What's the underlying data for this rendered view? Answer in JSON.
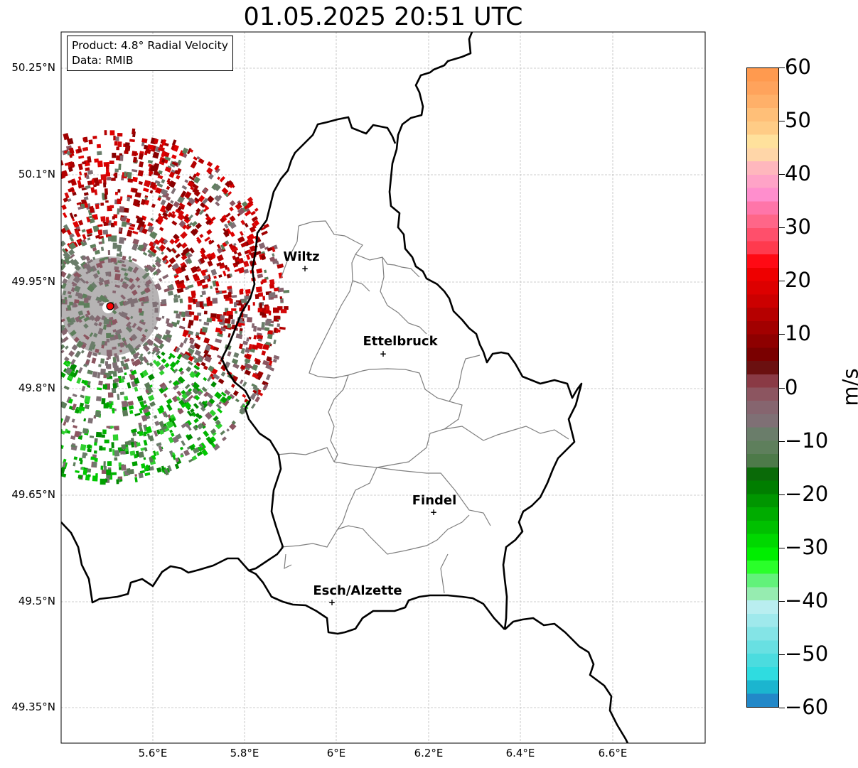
{
  "title": "01.05.2025 20:51 UTC",
  "info": {
    "product": "Product: 4.8° Radial Velocity",
    "data": "Data: RMIB"
  },
  "lat_labels": [
    "50.25°N",
    "50.1°N",
    "49.95°N",
    "49.8°N",
    "49.65°N",
    "49.5°N",
    "49.35°N"
  ],
  "lon_labels": [
    "5.6°E",
    "5.8°E",
    "6°E",
    "6.2°E",
    "6.4°E",
    "6.6°E"
  ],
  "cities": [
    {
      "name": "Wiltz"
    },
    {
      "name": "Ettelbruck"
    },
    {
      "name": "Findel"
    },
    {
      "name": "Esch/Alzette"
    }
  ],
  "colorbar": {
    "unit": "m/s",
    "ticks": [
      "60",
      "50",
      "40",
      "30",
      "20",
      "10",
      "0",
      "−10",
      "−20",
      "−30",
      "−40",
      "−50",
      "−60"
    ],
    "min": -60,
    "max": 60,
    "colors": [
      "#ff9a4f",
      "#ffa35c",
      "#ffb069",
      "#ffbf78",
      "#ffcc86",
      "#ffe19c",
      "#ffd6a8",
      "#ffb7bd",
      "#ffa3c7",
      "#ff8ecd",
      "#ff75a9",
      "#ff6688",
      "#ff4f6b",
      "#ff3a4e",
      "#ff0a14",
      "#ee0000",
      "#dd0000",
      "#cc0000",
      "#b60000",
      "#a20000",
      "#8e0000",
      "#7a0000",
      "#6b1010",
      "#8a3a45",
      "#8c5560",
      "#86656f",
      "#7f7075",
      "#6a7d6a",
      "#5e7f5c",
      "#4d7a49",
      "#0a6a08",
      "#007e00",
      "#009600",
      "#00ac00",
      "#00c000",
      "#00d800",
      "#00ee00",
      "#2aff2a",
      "#62f27a",
      "#96ecb0",
      "#b9eef0",
      "#9fe9ec",
      "#84e4e6",
      "#68e0e2",
      "#4bdcdf",
      "#2fdce0",
      "#1bb5cf",
      "#2288c8"
    ]
  },
  "radar": {
    "marker_color": "#ff0000"
  }
}
